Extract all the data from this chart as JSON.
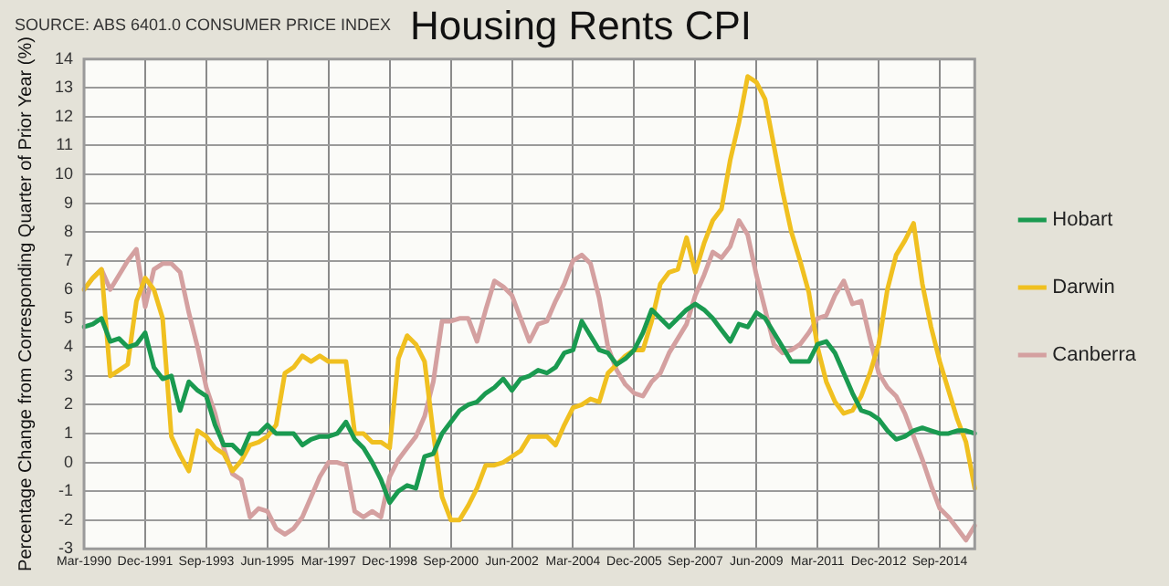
{
  "chart_data": {
    "type": "line",
    "title": "Housing Rents CPI",
    "ylabel": "Percentage Change from Corresponding Quarter of Prior Year (%)",
    "annotations": [
      "SOURCE: ABS 6401.0 CONSUMER PRICE INDEX"
    ],
    "categories": [
      "Mar-1990",
      null,
      null,
      null,
      null,
      null,
      null,
      "Dec-1991",
      null,
      null,
      null,
      null,
      null,
      null,
      "Sep-1993",
      null,
      null,
      null,
      null,
      null,
      null,
      "Jun-1995",
      null,
      null,
      null,
      null,
      null,
      null,
      "Mar-1997",
      null,
      null,
      null,
      null,
      null,
      null,
      "Dec-1998",
      null,
      null,
      null,
      null,
      null,
      null,
      "Sep-2000",
      null,
      null,
      null,
      null,
      null,
      null,
      "Jun-2002",
      null,
      null,
      null,
      null,
      null,
      null,
      "Mar-2004",
      null,
      null,
      null,
      null,
      null,
      null,
      "Dec-2005",
      null,
      null,
      null,
      null,
      null,
      null,
      "Sep-2007",
      null,
      null,
      null,
      null,
      null,
      null,
      "Jun-2009",
      null,
      null,
      null,
      null,
      null,
      null,
      "Mar-2011",
      null,
      null,
      null,
      null,
      null,
      null,
      "Dec-2012",
      null,
      null,
      null,
      null,
      null,
      null,
      "Sep-2014",
      null,
      null,
      null,
      null
    ],
    "series": [
      {
        "name": "Hobart",
        "color": "#1a9a50",
        "values": [
          4.7,
          4.8,
          5.0,
          4.2,
          4.3,
          4.0,
          4.1,
          4.5,
          3.3,
          2.9,
          3.0,
          1.8,
          2.8,
          2.5,
          2.3,
          1.3,
          0.6,
          0.6,
          0.3,
          1.0,
          1.0,
          1.3,
          1.0,
          1.0,
          1.0,
          0.6,
          0.8,
          0.9,
          0.9,
          1.0,
          1.4,
          0.8,
          0.5,
          0.0,
          -0.6,
          -1.4,
          -1.0,
          -0.8,
          -0.9,
          0.2,
          0.3,
          1.0,
          1.4,
          1.8,
          2.0,
          2.1,
          2.4,
          2.6,
          2.9,
          2.5,
          2.9,
          3.0,
          3.2,
          3.1,
          3.3,
          3.8,
          3.9,
          4.9,
          4.4,
          3.9,
          3.8,
          3.4,
          3.6,
          3.9,
          4.5,
          5.3,
          5.0,
          4.7,
          5.0,
          5.3,
          5.5,
          5.3,
          5.0,
          4.6,
          4.2,
          4.8,
          4.7,
          5.2,
          5.0,
          4.5,
          4.0,
          3.5,
          3.5,
          3.5,
          4.1,
          4.2,
          3.8,
          3.1,
          2.4,
          1.8,
          1.7,
          1.5,
          1.1,
          0.8,
          0.9,
          1.1,
          1.2,
          1.1,
          1.0,
          1.0,
          1.1,
          1.1,
          1.0
        ]
      },
      {
        "name": "Darwin",
        "color": "#f0c020",
        "values": [
          6.0,
          6.4,
          6.7,
          3.0,
          3.2,
          3.4,
          5.6,
          6.4,
          6.0,
          5.0,
          0.9,
          0.25,
          -0.3,
          1.1,
          0.9,
          0.5,
          0.3,
          -0.3,
          0.05,
          0.6,
          0.7,
          0.9,
          1.3,
          3.1,
          3.3,
          3.7,
          3.5,
          3.7,
          3.5,
          3.5,
          3.5,
          1.0,
          1.0,
          0.7,
          0.7,
          0.5,
          3.6,
          4.4,
          4.1,
          3.5,
          1.0,
          -1.2,
          -2.0,
          -2.0,
          -1.5,
          -0.9,
          -0.1,
          -0.1,
          0.0,
          0.2,
          0.4,
          0.9,
          0.9,
          0.9,
          0.6,
          1.3,
          1.9,
          2.0,
          2.2,
          2.1,
          3.1,
          3.4,
          3.7,
          3.9,
          3.9,
          4.9,
          6.2,
          6.6,
          6.7,
          7.8,
          6.6,
          7.6,
          8.4,
          8.8,
          10.5,
          11.8,
          13.4,
          13.2,
          12.6,
          11.0,
          9.4,
          8.0,
          7.0,
          5.9,
          4.0,
          2.8,
          2.1,
          1.7,
          1.8,
          2.3,
          3.1,
          4.1,
          6.0,
          7.2,
          7.7,
          8.3,
          6.2,
          4.7,
          3.5,
          2.5,
          1.5,
          0.7,
          -0.9
        ]
      },
      {
        "name": "Canberra",
        "color": "#d4a0a0",
        "values": [
          6.0,
          6.4,
          6.7,
          6.0,
          6.5,
          7.0,
          7.4,
          5.4,
          6.7,
          6.9,
          6.9,
          6.6,
          5.2,
          4.0,
          2.6,
          1.7,
          0.5,
          -0.4,
          -0.6,
          -1.9,
          -1.6,
          -1.7,
          -2.3,
          -2.5,
          -2.3,
          -1.9,
          -1.2,
          -0.5,
          0.0,
          0.0,
          -0.1,
          -1.7,
          -1.9,
          -1.7,
          -1.9,
          -0.5,
          0.1,
          0.5,
          0.9,
          1.6,
          2.8,
          4.9,
          4.9,
          5.0,
          5.0,
          4.2,
          5.3,
          6.3,
          6.1,
          5.8,
          5.0,
          4.2,
          4.8,
          4.9,
          5.6,
          6.2,
          7.0,
          7.2,
          6.9,
          5.7,
          4.0,
          3.2,
          2.7,
          2.4,
          2.3,
          2.8,
          3.1,
          3.8,
          4.3,
          4.8,
          5.8,
          6.5,
          7.3,
          7.1,
          7.5,
          8.4,
          7.9,
          6.5,
          5.3,
          4.1,
          3.8,
          3.9,
          4.1,
          4.5,
          5.0,
          5.1,
          5.8,
          6.3,
          5.5,
          5.6,
          4.3,
          3.1,
          2.6,
          2.3,
          1.7,
          0.9,
          0.1,
          -0.8,
          -1.6,
          -1.9,
          -2.3,
          -2.7,
          -2.2
        ]
      }
    ],
    "ylim": [
      -3,
      14
    ],
    "yticks": [
      -3,
      -2,
      -1,
      0,
      1,
      2,
      3,
      4,
      5,
      6,
      7,
      8,
      9,
      10,
      11,
      12,
      13,
      14
    ],
    "grid": true,
    "legend": "right",
    "marker": "none",
    "line_style": "solid"
  }
}
